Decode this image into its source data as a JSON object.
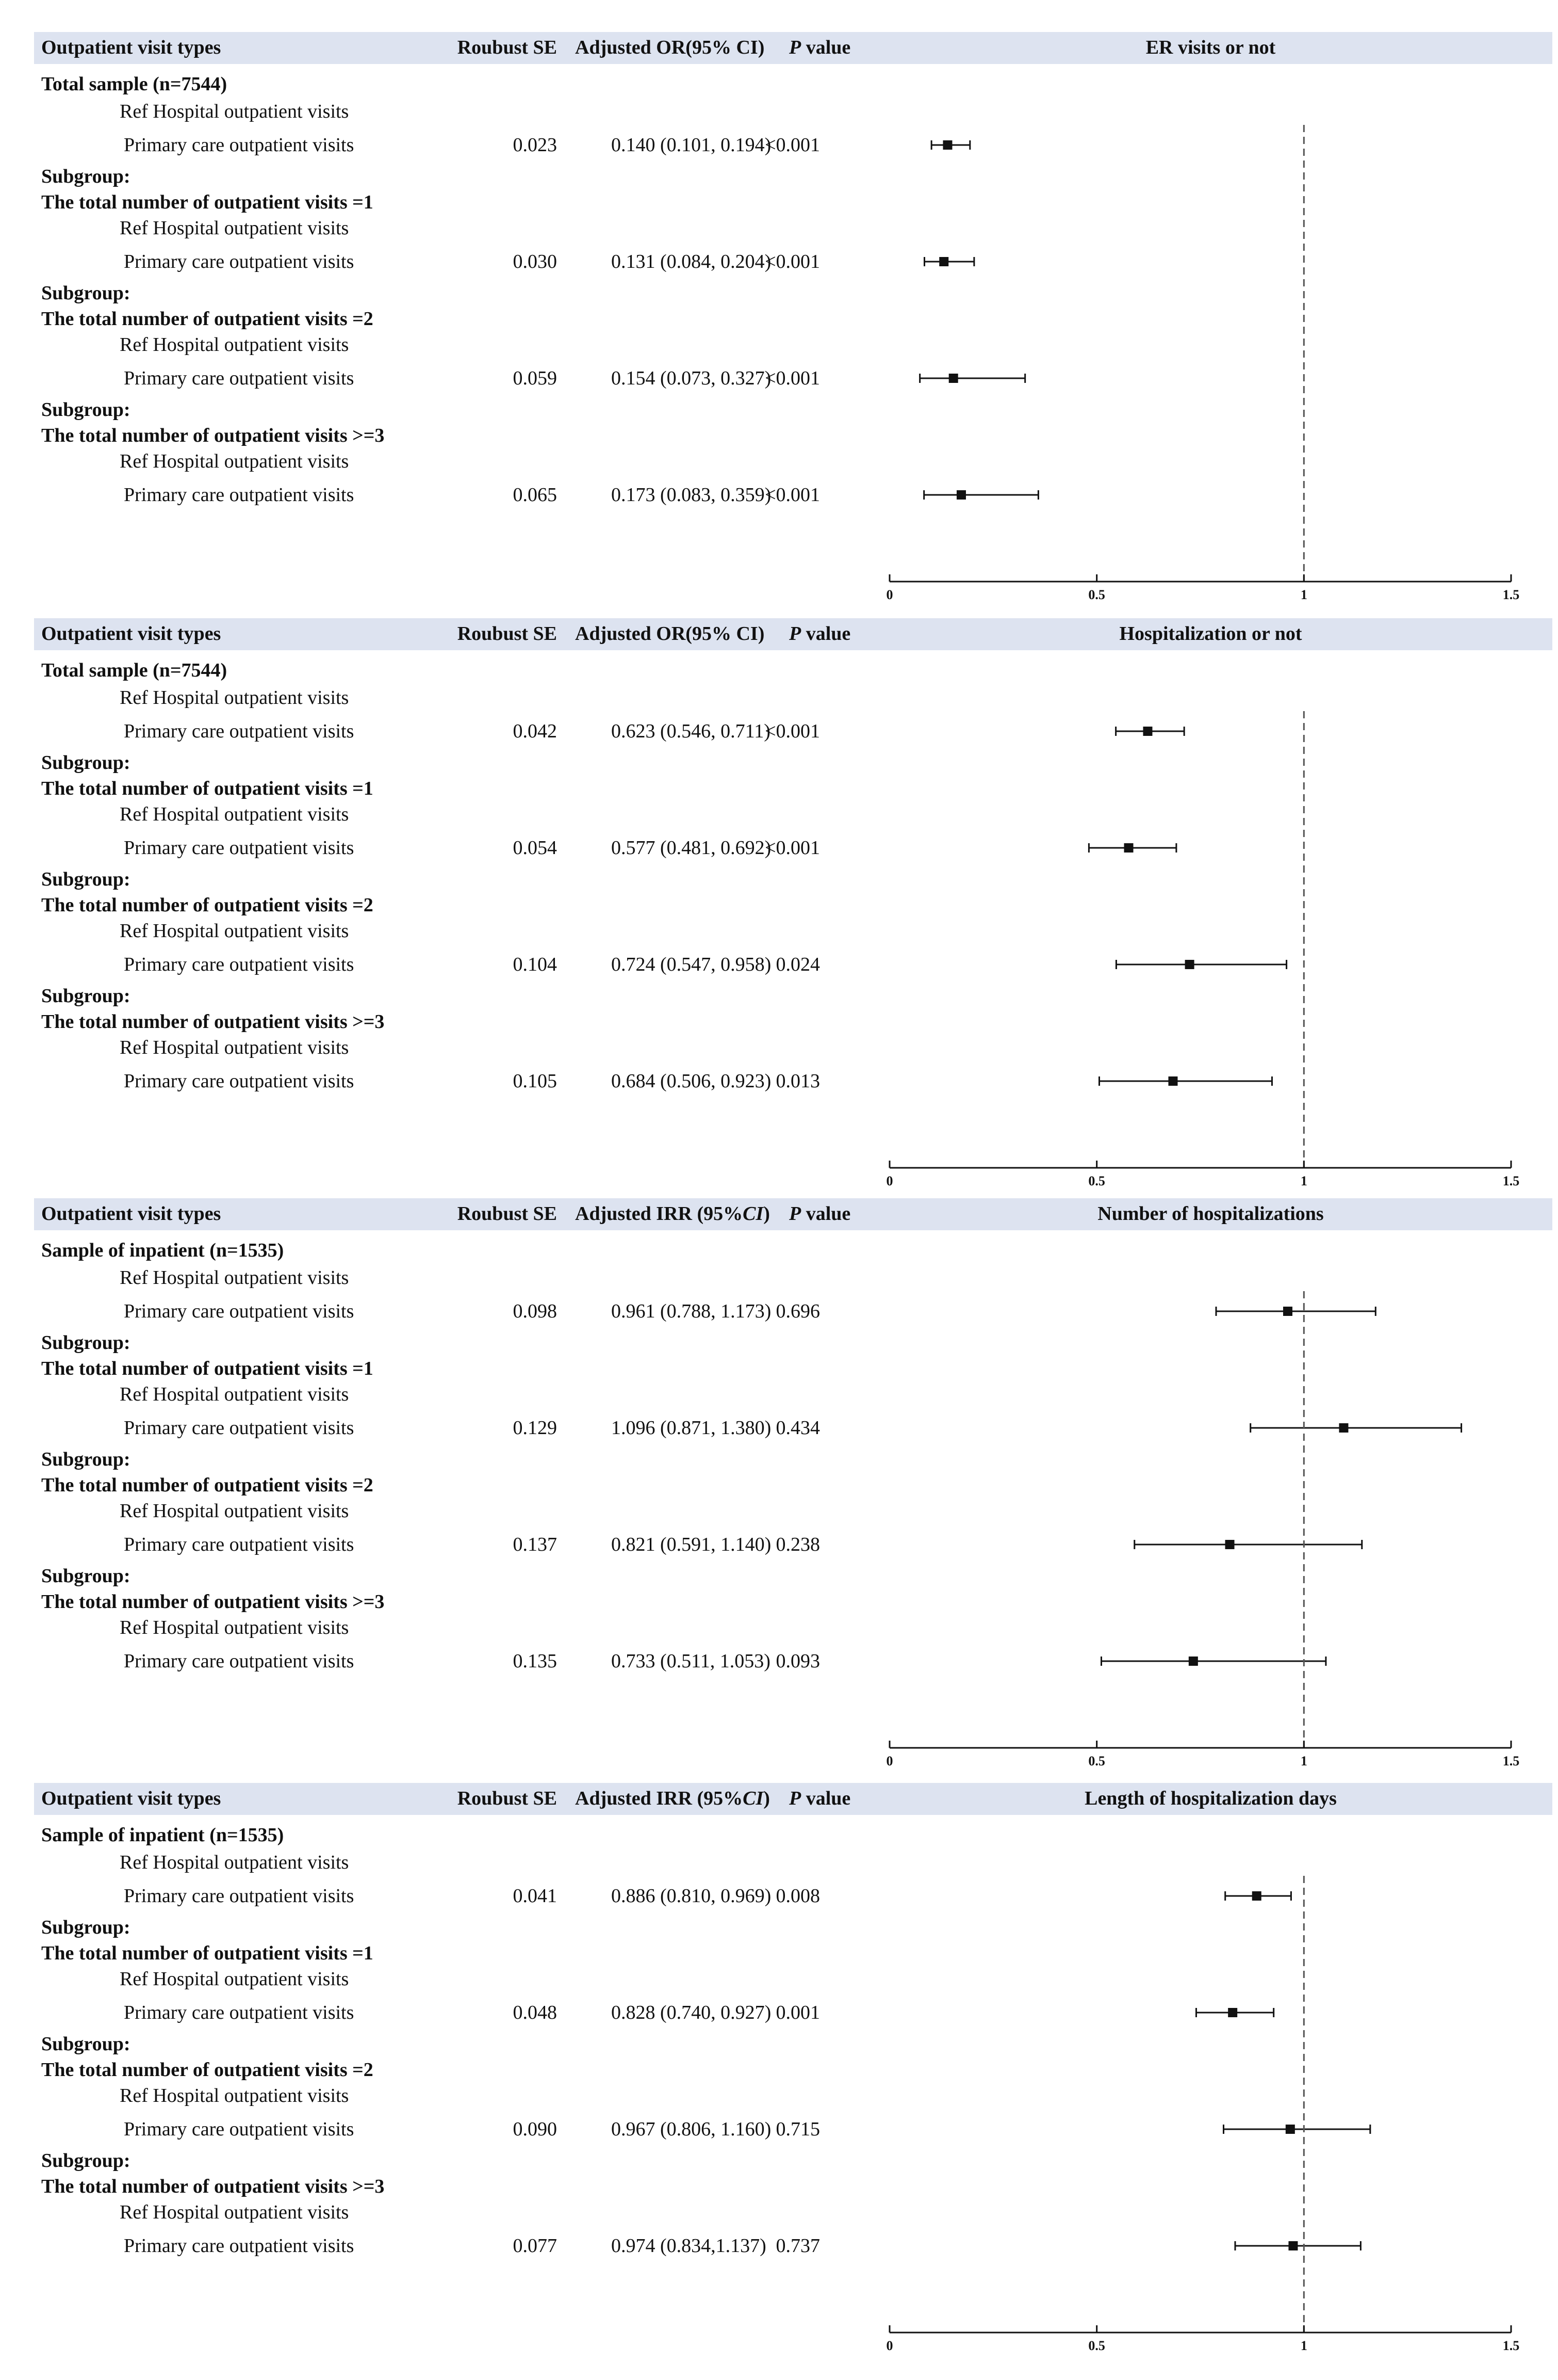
{
  "chart_data": [
    {
      "type": "forest",
      "title": "ER visits or not",
      "columns": {
        "types": "Outpatient visit types",
        "se": "Roubust SE",
        "estimate_label": "Adjusted OR(95% CI)",
        "p_italic": "P",
        "p_suffix": " value"
      },
      "xlim": [
        0,
        1.5
      ],
      "xticks": [
        0,
        0.5,
        1,
        1.5
      ],
      "xtick_labels": [
        "0",
        "0.5",
        "1",
        "1.5"
      ],
      "reference_line": 1,
      "groups": [
        {
          "header": [
            "Total sample (n=7544)"
          ],
          "ref": "Ref Hospital outpatient visits",
          "row": "Primary care outpatient visits",
          "se": "0.023",
          "est_text": "0.140 (0.101, 0.194)",
          "p": "<0.001",
          "or": 0.14,
          "lo": 0.101,
          "hi": 0.194
        },
        {
          "header": [
            "Subgroup:",
            "The total number of outpatient visits =1"
          ],
          "ref": "Ref Hospital outpatient visits",
          "row": "Primary care outpatient visits",
          "se": "0.030",
          "est_text": "0.131 (0.084, 0.204)",
          "p": "<0.001",
          "or": 0.131,
          "lo": 0.084,
          "hi": 0.204
        },
        {
          "header": [
            "Subgroup:",
            "The total number of outpatient visits =2"
          ],
          "ref": "Ref Hospital outpatient visits",
          "row": "Primary care outpatient visits",
          "se": "0.059",
          "est_text": "0.154 (0.073, 0.327)",
          "p": "<0.001",
          "or": 0.154,
          "lo": 0.073,
          "hi": 0.327
        },
        {
          "header": [
            "Subgroup:",
            "The total number of outpatient visits >=3"
          ],
          "ref": "Ref Hospital outpatient visits",
          "row": "Primary care outpatient visits",
          "se": "0.065",
          "est_text": "0.173 (0.083, 0.359)",
          "p": "<0.001",
          "or": 0.173,
          "lo": 0.083,
          "hi": 0.359
        }
      ]
    },
    {
      "type": "forest",
      "title": "Hospitalization or not",
      "columns": {
        "types": "Outpatient visit types",
        "se": "Roubust SE",
        "estimate_label": "Adjusted OR(95% CI)",
        "p_italic": "P",
        "p_suffix": " value"
      },
      "xlim": [
        0,
        1.5
      ],
      "xticks": [
        0,
        0.5,
        1,
        1.5
      ],
      "xtick_labels": [
        "0",
        "0.5",
        "1",
        "1.5"
      ],
      "reference_line": 1,
      "groups": [
        {
          "header": [
            "Total sample (n=7544)"
          ],
          "ref": "Ref Hospital outpatient visits",
          "row": "Primary care outpatient visits",
          "se": "0.042",
          "est_text": "0.623 (0.546, 0.711)",
          "p": "<0.001",
          "or": 0.623,
          "lo": 0.546,
          "hi": 0.711
        },
        {
          "header": [
            "Subgroup:",
            "The total number of outpatient visits =1"
          ],
          "ref": "Ref Hospital outpatient visits",
          "row": "Primary care outpatient visits",
          "se": "0.054",
          "est_text": "0.577 (0.481, 0.692)",
          "p": "<0.001",
          "or": 0.577,
          "lo": 0.481,
          "hi": 0.692
        },
        {
          "header": [
            "Subgroup:",
            "The total number of outpatient visits =2"
          ],
          "ref": "Ref Hospital outpatient visits",
          "row": "Primary care outpatient visits",
          "se": "0.104",
          "est_text": "0.724 (0.547, 0.958)",
          "p": "0.024",
          "or": 0.724,
          "lo": 0.547,
          "hi": 0.958
        },
        {
          "header": [
            "Subgroup:",
            "The total number of outpatient visits >=3"
          ],
          "ref": "Ref Hospital outpatient visits",
          "row": "Primary care outpatient visits",
          "se": "0.105",
          "est_text": "0.684 (0.506, 0.923)",
          "p": "0.013",
          "or": 0.684,
          "lo": 0.506,
          "hi": 0.923
        }
      ]
    },
    {
      "type": "forest",
      "title": "Number of hospitalizations",
      "columns": {
        "types": "Outpatient visit types",
        "se": "Roubust SE",
        "estimate_label": "Adjusted IRR (95%",
        "estimate_italic": "CI",
        "estimate_suffix": ")",
        "p_italic": "P",
        "p_suffix": " value"
      },
      "xlim": [
        0,
        1.5
      ],
      "xticks": [
        0,
        0.5,
        1,
        1.5
      ],
      "xtick_labels": [
        "0",
        "0.5",
        "1",
        "1.5"
      ],
      "reference_line": 1,
      "groups": [
        {
          "header": [
            "Sample of inpatient (n=1535)"
          ],
          "ref": "Ref Hospital outpatient visits",
          "row": "Primary care outpatient visits",
          "se": "0.098",
          "est_text": "0.961 (0.788, 1.173)",
          "p": "0.696",
          "or": 0.961,
          "lo": 0.788,
          "hi": 1.173
        },
        {
          "header": [
            "Subgroup:",
            "The total number of outpatient visits =1"
          ],
          "ref": "Ref Hospital outpatient visits",
          "row": "Primary care outpatient visits",
          "se": "0.129",
          "est_text": "1.096 (0.871, 1.380)",
          "p": "0.434",
          "or": 1.096,
          "lo": 0.871,
          "hi": 1.38
        },
        {
          "header": [
            "Subgroup:",
            "The total number of outpatient visits =2"
          ],
          "ref": "Ref Hospital outpatient visits",
          "row": "Primary care outpatient visits",
          "se": "0.137",
          "est_text": "0.821 (0.591, 1.140)",
          "p": "0.238",
          "or": 0.821,
          "lo": 0.591,
          "hi": 1.14
        },
        {
          "header": [
            "Subgroup:",
            "The total number of outpatient visits >=3"
          ],
          "ref": "Ref Hospital outpatient visits",
          "row": "Primary care outpatient visits",
          "se": "0.135",
          "est_text": "0.733 (0.511, 1.053)",
          "p": "0.093",
          "or": 0.733,
          "lo": 0.511,
          "hi": 1.053
        }
      ]
    },
    {
      "type": "forest",
      "title": "Length of hospitalization days",
      "columns": {
        "types": "Outpatient visit types",
        "se": "Roubust SE",
        "estimate_label": "Adjusted IRR (95%",
        "estimate_italic": "CI",
        "estimate_suffix": ")",
        "p_italic": "P",
        "p_suffix": " value"
      },
      "xlim": [
        0,
        1.5
      ],
      "xticks": [
        0,
        0.5,
        1,
        1.5
      ],
      "xtick_labels": [
        "0",
        "0.5",
        "1",
        "1.5"
      ],
      "reference_line": 1,
      "groups": [
        {
          "header": [
            "Sample of inpatient (n=1535)"
          ],
          "ref": "Ref Hospital outpatient visits",
          "row": "Primary care outpatient visits",
          "se": "0.041",
          "est_text": "0.886 (0.810, 0.969)",
          "p": "0.008",
          "or": 0.886,
          "lo": 0.81,
          "hi": 0.969
        },
        {
          "header": [
            "Subgroup:",
            "The total number of outpatient visits =1"
          ],
          "ref": "Ref Hospital outpatient visits",
          "row": "Primary care outpatient visits",
          "se": "0.048",
          "est_text": "0.828 (0.740, 0.927)",
          "p": "0.001",
          "or": 0.828,
          "lo": 0.74,
          "hi": 0.927
        },
        {
          "header": [
            "Subgroup:",
            "The total number of outpatient visits =2"
          ],
          "ref": "Ref Hospital outpatient visits",
          "row": "Primary care outpatient visits",
          "se": "0.090",
          "est_text": "0.967 (0.806, 1.160)",
          "p": "0.715",
          "or": 0.967,
          "lo": 0.806,
          "hi": 1.16
        },
        {
          "header": [
            "Subgroup:",
            "The total number of outpatient visits >=3"
          ],
          "ref": "Ref Hospital outpatient visits",
          "row": "Primary care outpatient visits",
          "se": "0.077",
          "est_text": "0.974 (0.834,1.137)",
          "p": "0.737",
          "or": 0.974,
          "lo": 0.834,
          "hi": 1.137
        }
      ]
    }
  ],
  "colors": {
    "header_band": "#dde3f0",
    "ink": "#111111",
    "ref_line": "#555555"
  }
}
